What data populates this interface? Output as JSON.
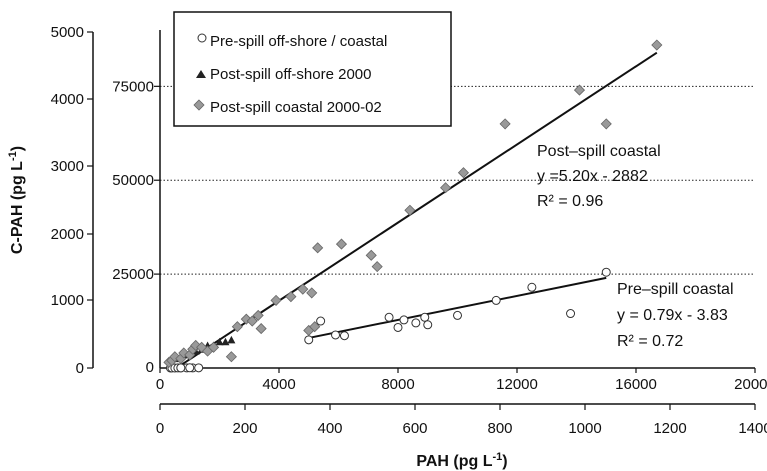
{
  "chart_data": {
    "type": "scatter",
    "axes": {
      "x_bottom": {
        "label": "PAH (pg L",
        "label_sup": "-1",
        "label_end": ")",
        "range": [
          0,
          1400
        ],
        "ticks": [
          "0",
          "200",
          "400",
          "600",
          "800",
          "1000",
          "1200",
          "1400"
        ]
      },
      "x_top": {
        "range": [
          0,
          20000
        ],
        "ticks": [
          "0",
          "4000",
          "8000",
          "12000",
          "16000",
          "20000"
        ]
      },
      "y_left": {
        "label": "C-PAH (pg L",
        "label_sup": "-1",
        "label_end": ")",
        "ticks": [
          "0",
          "1000",
          "2000",
          "3000",
          "4000",
          "5000"
        ]
      },
      "y_right_inner": {
        "range": [
          0,
          90000
        ],
        "ticks": [
          "25000",
          "50000",
          "75000"
        ]
      }
    },
    "gridlines_y": [
      25000,
      50000,
      75000
    ],
    "legend": [
      {
        "label": "Pre-spill off-shore / coastal",
        "marker": "circle"
      },
      {
        "label": "Post-spill off-shore 2000",
        "marker": "triangle"
      },
      {
        "label": "Post-spill coastal 2000-02",
        "marker": "diamond"
      }
    ],
    "series": [
      {
        "name": "Pre-spill off-shore / coastal",
        "marker": "circle",
        "points": [
          [
            350,
            5
          ],
          [
            400,
            12
          ],
          [
            500,
            8
          ],
          [
            600,
            22
          ],
          [
            700,
            18
          ],
          [
            900,
            30
          ],
          [
            1100,
            20
          ],
          [
            1300,
            45
          ],
          [
            700,
            40
          ],
          [
            1000,
            60
          ],
          [
            5000,
            7500
          ],
          [
            5400,
            12500
          ],
          [
            5900,
            8800
          ],
          [
            6200,
            8600
          ],
          [
            7700,
            13500
          ],
          [
            8000,
            10800
          ],
          [
            8200,
            12800
          ],
          [
            8600,
            12000
          ],
          [
            8900,
            13500
          ],
          [
            9000,
            11500
          ],
          [
            10000,
            14000
          ],
          [
            11300,
            18000
          ],
          [
            12500,
            21500
          ],
          [
            13800,
            14500
          ],
          [
            15000,
            25500
          ]
        ]
      },
      {
        "name": "Post-spill off-shore 2000",
        "marker": "triangle",
        "points": [
          [
            600,
            2500
          ],
          [
            800,
            3500
          ],
          [
            1000,
            4000
          ],
          [
            1200,
            4500
          ],
          [
            1400,
            5000
          ],
          [
            1600,
            6000
          ],
          [
            1800,
            6000
          ],
          [
            2000,
            7000
          ],
          [
            2200,
            7000
          ],
          [
            2400,
            7500
          ]
        ]
      },
      {
        "name": "Post-spill coastal 2000-02",
        "marker": "diamond",
        "points": [
          [
            300,
            1500
          ],
          [
            400,
            2000
          ],
          [
            500,
            3000
          ],
          [
            700,
            2500
          ],
          [
            800,
            4000
          ],
          [
            1000,
            3500
          ],
          [
            1100,
            5000
          ],
          [
            1200,
            6000
          ],
          [
            1400,
            5500
          ],
          [
            1600,
            4500
          ],
          [
            1800,
            5500
          ],
          [
            2400,
            3000
          ],
          [
            2600,
            11000
          ],
          [
            2900,
            13000
          ],
          [
            3100,
            12500
          ],
          [
            3300,
            14000
          ],
          [
            3400,
            10500
          ],
          [
            3900,
            18000
          ],
          [
            4400,
            19000
          ],
          [
            4800,
            21000
          ],
          [
            5000,
            10000
          ],
          [
            5100,
            20000
          ],
          [
            5300,
            32000
          ],
          [
            5200,
            11000
          ],
          [
            6100,
            33000
          ],
          [
            7100,
            30000
          ],
          [
            7300,
            27000
          ],
          [
            8400,
            42000
          ],
          [
            9600,
            48000
          ],
          [
            10200,
            52000
          ],
          [
            11600,
            65000
          ],
          [
            14100,
            74000
          ],
          [
            15000,
            65000
          ],
          [
            16700,
            86000
          ]
        ]
      }
    ],
    "fits": [
      {
        "name": "Post-spill coastal",
        "slope": 5.2,
        "intercept": -2882,
        "x_range": [
          500,
          16700
        ],
        "label_lines": [
          "Post–spill coastal",
          "y =5.20x - 2882",
          "R² = 0.96"
        ]
      },
      {
        "name": "Pre-spill coastal",
        "slope": 0.79,
        "intercept": -3.83,
        "x_range": [
          5000,
          15000
        ],
        "y_range": [
          8000,
          24000
        ],
        "label_lines": [
          "Pre–spill coastal",
          "y = 0.79x - 3.83",
          "R² = 0.72"
        ]
      }
    ]
  }
}
